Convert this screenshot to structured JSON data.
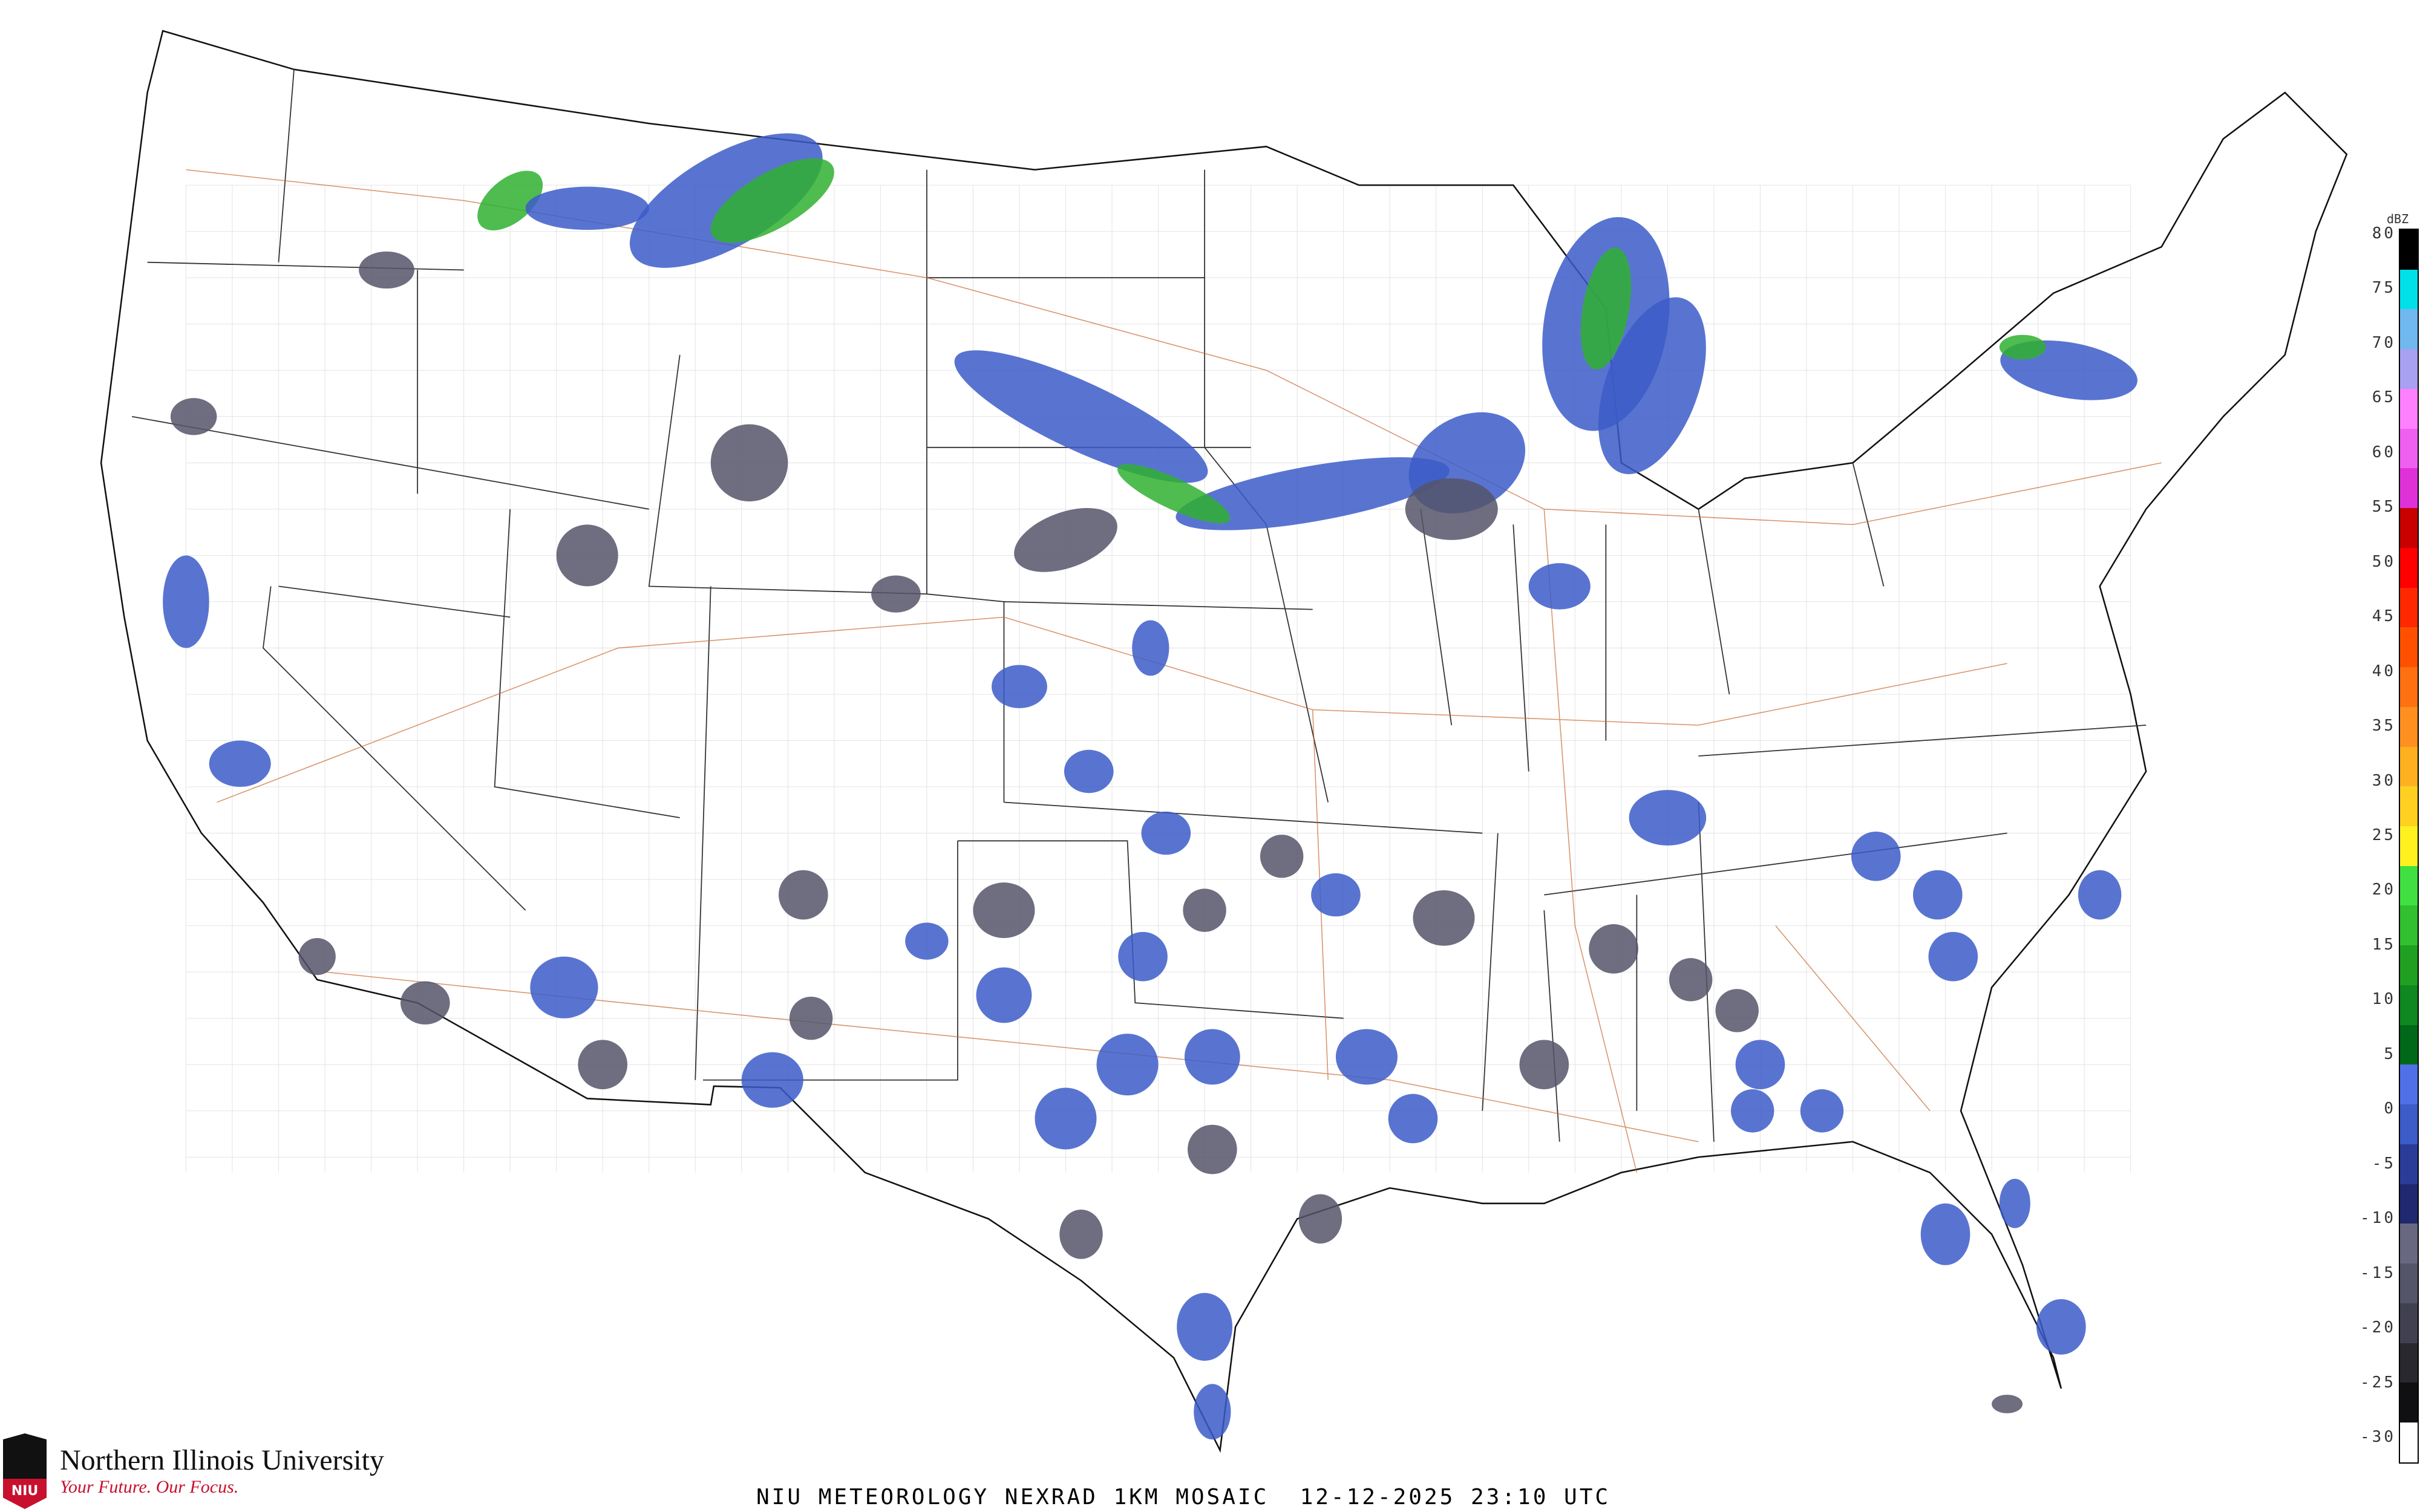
{
  "caption": "NIU METEOROLOGY NEXRAD 1KM MOSAIC  12-12-2025 23:10 UTC",
  "logo": {
    "university": "Northern Illinois University",
    "tagline": "Your Future. Our Focus.",
    "mark": "NIU"
  },
  "legend": {
    "unit": "dBZ",
    "ticks": [
      "80",
      "75",
      "70",
      "65",
      "60",
      "55",
      "50",
      "45",
      "40",
      "35",
      "30",
      "25",
      "20",
      "15",
      "10",
      "5",
      "0",
      "-5",
      "-10",
      "-15",
      "-20",
      "-25",
      "-30"
    ],
    "colors": [
      "#000000",
      "#00e0e8",
      "#70b8f0",
      "#a8a0f0",
      "#ff80ff",
      "#f060f0",
      "#e030d8",
      "#c80000",
      "#ff0000",
      "#ff2800",
      "#ff5000",
      "#ff7010",
      "#ff9020",
      "#ffb020",
      "#ffd020",
      "#fff020",
      "#40e040",
      "#30c030",
      "#20a020",
      "#108820",
      "#006818",
      "#5070e8",
      "#3c5cc8",
      "#2a3c98",
      "#202870",
      "#686880",
      "#55556a",
      "#404050",
      "#28282e",
      "#101012",
      "#ffffff"
    ]
  },
  "colors": {
    "state_lines": "#333333",
    "county_lines": "#cccccc",
    "highways": "#c86428"
  }
}
